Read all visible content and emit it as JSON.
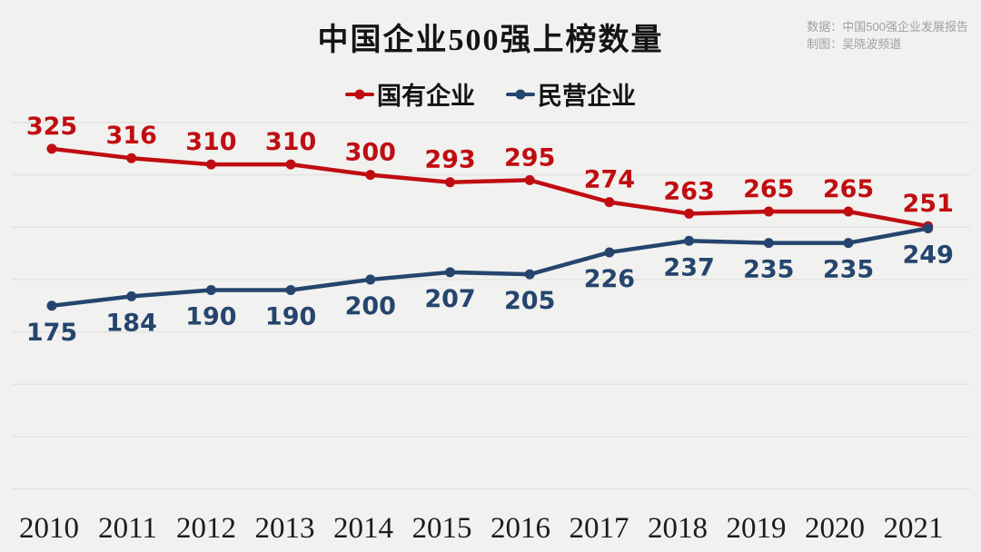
{
  "colors": {
    "background": "#f1f1ef",
    "gridline": "#e3e3e1",
    "axis_text": "#1c1c1c",
    "title_text": "#141414",
    "attribution_text": "#a0a09e"
  },
  "attribution": {
    "source": "数据：中国500强企业发展报告",
    "author": "制图：吴晓波频道"
  },
  "chart_data": {
    "type": "line",
    "title": "中国企业500强上榜数量",
    "x": [
      "2010",
      "2011",
      "2012",
      "2013",
      "2014",
      "2015",
      "2016",
      "2017",
      "2018",
      "2019",
      "2020",
      "2021"
    ],
    "series": [
      {
        "name": "国有企业",
        "color": "#c00d12",
        "label_position": "above",
        "values": [
          325,
          316,
          310,
          310,
          300,
          293,
          295,
          274,
          263,
          265,
          265,
          251
        ]
      },
      {
        "name": "民营企业",
        "color": "#25456e",
        "label_position": "below",
        "values": [
          175,
          184,
          190,
          190,
          200,
          207,
          205,
          226,
          237,
          235,
          235,
          249
        ]
      }
    ],
    "xlabel": "",
    "ylabel": "",
    "ylim": [
      0,
      350
    ],
    "grid_step": 50,
    "grid": true,
    "y_axis_labels_visible": false,
    "legend_position": "top",
    "data_labels": true
  }
}
